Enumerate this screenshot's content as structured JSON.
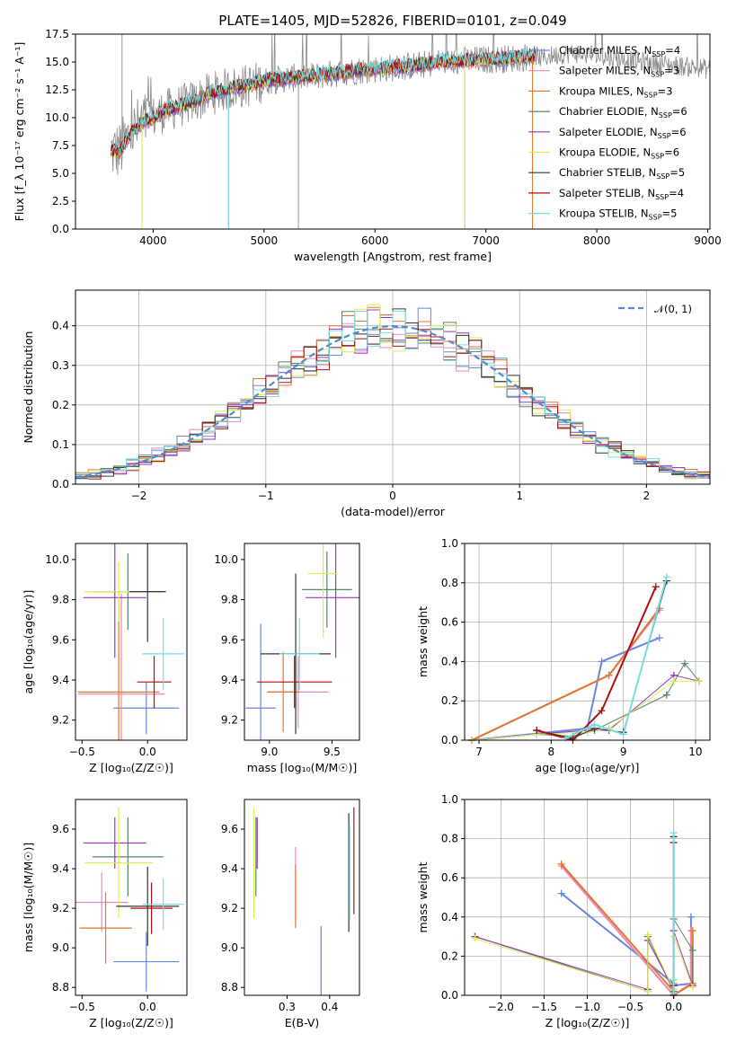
{
  "title": "PLATE=1405, MJD=52826, FIBERID=0101, z=0.049",
  "colors": {
    "chabrier_miles": "#6688dd",
    "salpeter_miles": "#ee88bb",
    "kroupa_miles": "#e07830",
    "chabrier_elodie": "#558866",
    "salpeter_elodie": "#9933bb",
    "kroupa_elodie": "#ddee55",
    "chabrier_stelib": "#333333",
    "salpeter_stelib": "#aa1111",
    "kroupa_stelib": "#77dddd",
    "data": "#888888",
    "normal": "#5588cc"
  },
  "models": [
    {
      "key": "chabrier_miles",
      "label": "Chabrier MILES, N",
      "nssp": "=4"
    },
    {
      "key": "salpeter_miles",
      "label": "Salpeter MILES, N",
      "nssp": "=3"
    },
    {
      "key": "kroupa_miles",
      "label": "Kroupa MILES, N",
      "nssp": "=3"
    },
    {
      "key": "chabrier_elodie",
      "label": "Chabrier ELODIE, N",
      "nssp": "=6"
    },
    {
      "key": "salpeter_elodie",
      "label": "Salpeter ELODIE, N",
      "nssp": "=6"
    },
    {
      "key": "kroupa_elodie",
      "label": "Kroupa ELODIE, N",
      "nssp": "=6"
    },
    {
      "key": "chabrier_stelib",
      "label": "Chabrier STELIB, N",
      "nssp": "=5"
    },
    {
      "key": "salpeter_stelib",
      "label": "Salpeter STELIB, N",
      "nssp": "=4"
    },
    {
      "key": "kroupa_stelib",
      "label": "Kroupa STELIB, N",
      "nssp": "=5"
    }
  ],
  "legend_sub": "SSP",
  "chart_data": [
    {
      "id": "spectrum",
      "type": "line",
      "xlabel": "wavelength [Angstrom, rest frame]",
      "ylabel": "Flux [f_λ 10⁻¹⁷ erg cm⁻² s⁻¹ A⁻¹]",
      "xlim": [
        3300,
        9020
      ],
      "ylim": [
        0,
        17.5
      ],
      "xticks": [
        4000,
        5000,
        6000,
        7000,
        8000,
        9000
      ],
      "xtick_labels": [
        "4000",
        "5000",
        "6000",
        "7000",
        "8000",
        "9000"
      ],
      "yticks": [
        0,
        2.5,
        5,
        7.5,
        10,
        12.5,
        15,
        17.5
      ],
      "ytick_labels": [
        "0.0",
        "2.5",
        "5.0",
        "7.5",
        "10.0",
        "12.5",
        "15.0",
        "17.5"
      ],
      "grid": false,
      "legend": "top-right",
      "continuum": [
        [
          3600,
          7.0
        ],
        [
          3700,
          7.0
        ],
        [
          3800,
          8.6
        ],
        [
          3900,
          9.5
        ],
        [
          4000,
          10.0
        ],
        [
          4100,
          10.6
        ],
        [
          4200,
          10.9
        ],
        [
          4300,
          11.2
        ],
        [
          4400,
          11.6
        ],
        [
          4500,
          12.1
        ],
        [
          4600,
          12.4
        ],
        [
          4700,
          12.6
        ],
        [
          4800,
          12.8
        ],
        [
          4900,
          13.0
        ],
        [
          5000,
          13.3
        ],
        [
          5200,
          13.5
        ],
        [
          5400,
          13.7
        ],
        [
          5600,
          13.9
        ],
        [
          5800,
          14.2
        ],
        [
          6000,
          14.4
        ],
        [
          6200,
          14.5
        ],
        [
          6400,
          14.7
        ],
        [
          6600,
          15.0
        ],
        [
          6800,
          15.1
        ],
        [
          7000,
          15.2
        ],
        [
          7200,
          15.3
        ],
        [
          7400,
          15.5
        ],
        [
          7450,
          15.6
        ]
      ],
      "model_end": 7450,
      "data_end": 9020,
      "data_tail": [
        [
          7500,
          15.3
        ],
        [
          7600,
          15.6
        ],
        [
          7700,
          15.7
        ],
        [
          7800,
          15.8
        ],
        [
          8000,
          15.5
        ],
        [
          8200,
          15.3
        ],
        [
          8400,
          15.0
        ],
        [
          8600,
          14.8
        ],
        [
          8800,
          14.6
        ],
        [
          9000,
          14.4
        ]
      ],
      "drops": [
        [
          4680,
          0.0
        ],
        [
          5310,
          0.0
        ],
        [
          6810,
          0.0
        ],
        [
          7420,
          0.0
        ],
        [
          3900,
          0.0
        ]
      ]
    },
    {
      "id": "residuals",
      "type": "histogram",
      "xlabel": "(data-model)/error",
      "ylabel": "Normed distribution",
      "xlim": [
        -2.5,
        2.5
      ],
      "ylim": [
        0,
        0.49
      ],
      "xticks": [
        -2,
        -1,
        0,
        1,
        2
      ],
      "xtick_labels": [
        "−2",
        "−1",
        "0",
        "1",
        "2"
      ],
      "yticks": [
        0,
        0.1,
        0.2,
        0.3,
        0.4
      ],
      "ytick_labels": [
        "0.0",
        "0.1",
        "0.2",
        "0.3",
        "0.4"
      ],
      "grid": true,
      "legend": "top-right",
      "normal_label": "𝒩(0, 1)",
      "bin_width": 0.1
    },
    {
      "id": "age_vs_Z",
      "type": "errorbar",
      "xlabel": "Z [log₁₀(Z/Z☉)]",
      "ylabel": "age  [log₁₀(age/yr)]",
      "xlim": [
        -0.55,
        0.3
      ],
      "ylim": [
        9.1,
        10.08
      ],
      "xticks": [
        -0.5,
        0.0
      ],
      "xtick_labels": [
        "−0.5",
        "0.0"
      ],
      "yticks": [
        9.2,
        9.4,
        9.6,
        9.8,
        10.0
      ],
      "ytick_labels": [
        "9.2",
        "9.4",
        "9.6",
        "9.8",
        "10.0"
      ],
      "points": [
        {
          "m": "chabrier_miles",
          "x": -0.01,
          "y": 9.26,
          "xe": 0.25,
          "ye": 0.13
        },
        {
          "m": "salpeter_miles",
          "x": -0.2,
          "y": 9.33,
          "xe": 0.33,
          "ye": 0.5
        },
        {
          "m": "kroupa_miles",
          "x": -0.22,
          "y": 9.34,
          "xe": 0.31,
          "ye": 0.5
        },
        {
          "m": "chabrier_elodie",
          "x": -0.15,
          "y": 9.84,
          "xe": 0.27,
          "ye": 0.19
        },
        {
          "m": "salpeter_elodie",
          "x": -0.25,
          "y": 9.81,
          "xe": 0.24,
          "ye": 0.3
        },
        {
          "m": "kroupa_elodie",
          "x": -0.22,
          "y": 9.84,
          "xe": 0.26,
          "ye": 0.15
        },
        {
          "m": "chabrier_stelib",
          "x": 0.0,
          "y": 9.84,
          "xe": 0.14,
          "ye": 0.25
        },
        {
          "m": "salpeter_stelib",
          "x": 0.05,
          "y": 9.39,
          "xe": 0.13,
          "ye": 0.13
        },
        {
          "m": "kroupa_stelib",
          "x": 0.12,
          "y": 9.53,
          "xe": 0.16,
          "ye": 0.18
        }
      ]
    },
    {
      "id": "age_vs_mass",
      "type": "errorbar",
      "xlabel": "mass [log₁₀(M/M☉)]",
      "ylabel": "",
      "xlim": [
        8.8,
        9.72
      ],
      "ylim": [
        9.1,
        10.08
      ],
      "xticks": [
        9.0,
        9.5
      ],
      "xtick_labels": [
        "9.0",
        "9.5"
      ],
      "yticks": [
        9.2,
        9.4,
        9.6,
        9.8,
        10.0
      ],
      "ytick_labels": [
        "9.2",
        "9.4",
        "9.6",
        "9.8",
        "10.0"
      ],
      "points": [
        {
          "m": "chabrier_miles",
          "x": 8.93,
          "y": 9.26,
          "xe": 0.12,
          "ye": 0.42
        },
        {
          "m": "salpeter_miles",
          "x": 9.23,
          "y": 9.34,
          "xe": 0.24,
          "ye": 0.18
        },
        {
          "m": "kroupa_miles",
          "x": 9.11,
          "y": 9.34,
          "xe": 0.13,
          "ye": 0.2
        },
        {
          "m": "chabrier_elodie",
          "x": 9.46,
          "y": 9.85,
          "xe": 0.2,
          "ye": 0.19
        },
        {
          "m": "salpeter_elodie",
          "x": 9.53,
          "y": 9.81,
          "xe": 0.24,
          "ye": 0.3
        },
        {
          "m": "kroupa_elodie",
          "x": 9.43,
          "y": 9.93,
          "xe": 0.12,
          "ye": 0.32
        },
        {
          "m": "chabrier_stelib",
          "x": 9.21,
          "y": 9.53,
          "xe": 0.28,
          "ye": 0.4
        },
        {
          "m": "salpeter_stelib",
          "x": 9.2,
          "y": 9.39,
          "xe": 0.3,
          "ye": 0.13
        },
        {
          "m": "kroupa_stelib",
          "x": 9.24,
          "y": 9.53,
          "xe": 0.16,
          "ye": 0.18
        }
      ]
    },
    {
      "id": "weight_vs_age",
      "type": "line",
      "xlabel": "age  [log₁₀(age/yr)]",
      "ylabel": "mass weight",
      "xlim": [
        6.8,
        10.2
      ],
      "ylim": [
        0,
        1.0
      ],
      "xticks": [
        7,
        8,
        9,
        10
      ],
      "xtick_labels": [
        "7",
        "8",
        "9",
        "10"
      ],
      "yticks": [
        0,
        0.2,
        0.4,
        0.6,
        0.8,
        1.0
      ],
      "ytick_labels": [
        "0.0",
        "0.2",
        "0.4",
        "0.6",
        "0.8",
        "1.0"
      ],
      "grid": true,
      "series": [
        {
          "m": "chabrier_miles",
          "w": 2,
          "x": [
            6.9,
            8.5,
            8.7,
            9.5
          ],
          "y": [
            0.0,
            0.06,
            0.4,
            0.52
          ]
        },
        {
          "m": "salpeter_miles",
          "w": 2,
          "x": [
            6.9,
            8.8,
            9.5
          ],
          "y": [
            0.0,
            0.33,
            0.66
          ]
        },
        {
          "m": "kroupa_miles",
          "w": 2,
          "x": [
            6.9,
            8.8,
            9.5
          ],
          "y": [
            0.0,
            0.33,
            0.67
          ]
        },
        {
          "m": "chabrier_elodie",
          "w": 1,
          "x": [
            6.9,
            7.8,
            8.3,
            8.6,
            9.6,
            9.85,
            10.05
          ],
          "y": [
            0.0,
            0.03,
            0.02,
            0.05,
            0.23,
            0.39,
            0.3
          ]
        },
        {
          "m": "salpeter_elodie",
          "w": 1,
          "x": [
            6.9,
            7.8,
            8.5,
            8.8,
            9.7,
            10.05
          ],
          "y": [
            0.0,
            0.03,
            0.05,
            0.05,
            0.33,
            0.3
          ]
        },
        {
          "m": "kroupa_elodie",
          "w": 1,
          "x": [
            6.9,
            7.8,
            8.5,
            8.8,
            9.7,
            10.05
          ],
          "y": [
            0.0,
            0.03,
            0.04,
            0.06,
            0.3,
            0.3
          ]
        },
        {
          "m": "chabrier_stelib",
          "w": 1,
          "x": [
            7.8,
            8.3,
            8.6,
            9.0,
            9.6
          ],
          "y": [
            0.05,
            0.01,
            0.06,
            0.04,
            0.81
          ]
        },
        {
          "m": "salpeter_stelib",
          "w": 2,
          "x": [
            7.8,
            8.3,
            8.7,
            9.45
          ],
          "y": [
            0.05,
            0.0,
            0.15,
            0.78
          ]
        },
        {
          "m": "kroupa_stelib",
          "w": 2,
          "x": [
            8.2,
            8.6,
            9.0,
            9.6
          ],
          "y": [
            0.01,
            0.08,
            0.03,
            0.83
          ]
        }
      ]
    },
    {
      "id": "mass_vs_Z",
      "type": "errorbar",
      "xlabel": "Z [log₁₀(Z/Z☉)]",
      "ylabel": "mass [log₁₀(M/M☉)]",
      "xlim": [
        -0.55,
        0.3
      ],
      "ylim": [
        8.76,
        9.75
      ],
      "xticks": [
        -0.5,
        0.0
      ],
      "xtick_labels": [
        "−0.5",
        "0.0"
      ],
      "yticks": [
        8.8,
        9.0,
        9.2,
        9.4,
        9.6
      ],
      "ytick_labels": [
        "8.8",
        "9.0",
        "9.2",
        "9.4",
        "9.6"
      ],
      "points": [
        {
          "m": "chabrier_miles",
          "x": -0.01,
          "y": 8.93,
          "xe": 0.25,
          "ye": 0.15
        },
        {
          "m": "salpeter_miles",
          "x": -0.35,
          "y": 9.23,
          "xe": 0.2,
          "ye": 0.15
        },
        {
          "m": "kroupa_miles",
          "x": -0.32,
          "y": 9.1,
          "xe": 0.2,
          "ye": 0.18
        },
        {
          "m": "chabrier_elodie",
          "x": -0.15,
          "y": 9.46,
          "xe": 0.27,
          "ye": 0.2
        },
        {
          "m": "salpeter_elodie",
          "x": -0.25,
          "y": 9.53,
          "xe": 0.24,
          "ye": 0.13
        },
        {
          "m": "kroupa_elodie",
          "x": -0.22,
          "y": 9.43,
          "xe": 0.26,
          "ye": 0.28
        },
        {
          "m": "chabrier_stelib",
          "x": 0.0,
          "y": 9.21,
          "xe": 0.24,
          "ye": 0.2
        },
        {
          "m": "salpeter_stelib",
          "x": 0.03,
          "y": 9.2,
          "xe": 0.16,
          "ye": 0.13
        },
        {
          "m": "kroupa_stelib",
          "x": 0.12,
          "y": 9.22,
          "xe": 0.16,
          "ye": 0.13
        }
      ]
    },
    {
      "id": "mass_vs_ebv",
      "type": "errorbar",
      "xlabel": "E(B-V)",
      "ylabel": "",
      "xlim": [
        0.2,
        0.47
      ],
      "ylim": [
        8.76,
        9.75
      ],
      "xticks": [
        0.3,
        0.4
      ],
      "xtick_labels": [
        "0.3",
        "0.4"
      ],
      "yticks": [
        8.8,
        9.0,
        9.2,
        9.4,
        9.6
      ],
      "ytick_labels": [
        "8.8",
        "9.0",
        "9.2",
        "9.4",
        "9.6"
      ],
      "points": [
        {
          "m": "chabrier_miles",
          "x": 0.38,
          "y": 8.93,
          "xe": 0.0,
          "ye": 0.18
        },
        {
          "m": "salpeter_miles",
          "x": 0.32,
          "y": 9.33,
          "xe": 0.0,
          "ye": 0.18
        },
        {
          "m": "kroupa_miles",
          "x": 0.32,
          "y": 9.26,
          "xe": 0.0,
          "ye": 0.16
        },
        {
          "m": "chabrier_elodie",
          "x": 0.227,
          "y": 9.46,
          "xe": 0.0,
          "ye": 0.2
        },
        {
          "m": "salpeter_elodie",
          "x": 0.23,
          "y": 9.53,
          "xe": 0.0,
          "ye": 0.13
        },
        {
          "m": "kroupa_elodie",
          "x": 0.222,
          "y": 9.43,
          "xe": 0.0,
          "ye": 0.28
        },
        {
          "m": "chabrier_stelib",
          "x": 0.445,
          "y": 9.38,
          "xe": 0.0,
          "ye": 0.3
        },
        {
          "m": "salpeter_stelib",
          "x": 0.457,
          "y": 9.44,
          "xe": 0.0,
          "ye": 0.27
        },
        {
          "m": "kroupa_stelib",
          "x": 0.447,
          "y": 9.38,
          "xe": 0.0,
          "ye": 0.24
        }
      ]
    },
    {
      "id": "weight_vs_Z",
      "type": "line",
      "xlabel": "Z [log₁₀(Z/Z☉)]",
      "ylabel": "mass weight",
      "xlim": [
        -2.42,
        0.42
      ],
      "ylim": [
        0,
        1.0
      ],
      "xticks": [
        -2.0,
        -1.5,
        -1.0,
        -0.5,
        0.0
      ],
      "xtick_labels": [
        "−2.0",
        "−1.5",
        "−1.0",
        "−0.5",
        "0.0"
      ],
      "yticks": [
        0,
        0.2,
        0.4,
        0.6,
        0.8,
        1.0
      ],
      "ytick_labels": [
        "0.0",
        "0.2",
        "0.4",
        "0.6",
        "0.8",
        "1.0"
      ],
      "grid": true,
      "series": [
        {
          "m": "chabrier_miles",
          "w": 2,
          "x": [
            -1.3,
            0.0,
            0.0,
            0.0,
            0.2,
            0.2
          ],
          "y": [
            0.52,
            0.06,
            0.0,
            0.05,
            0.06,
            0.4
          ]
        },
        {
          "m": "salpeter_miles",
          "w": 2,
          "x": [
            -1.3,
            0.0,
            0.0,
            0.2,
            0.2
          ],
          "y": [
            0.66,
            0.0,
            0.0,
            0.06,
            0.33
          ]
        },
        {
          "m": "kroupa_miles",
          "w": 2,
          "x": [
            -1.3,
            0.0,
            0.0,
            0.22,
            0.22
          ],
          "y": [
            0.67,
            0.02,
            0.0,
            0.06,
            0.33
          ]
        },
        {
          "m": "chabrier_elodie",
          "w": 1,
          "x": [
            -2.3,
            -0.3,
            -0.3,
            0.0,
            0.0,
            0.22,
            0.22
          ],
          "y": [
            0.3,
            0.02,
            0.3,
            0.02,
            0.39,
            0.23,
            0.05
          ]
        },
        {
          "m": "salpeter_elodie",
          "w": 1,
          "x": [
            -2.3,
            -0.3,
            -0.3,
            0.0,
            0.0,
            0.22
          ],
          "y": [
            0.3,
            0.03,
            0.28,
            0.03,
            0.33,
            0.05
          ]
        },
        {
          "m": "kroupa_elodie",
          "w": 1,
          "x": [
            -2.3,
            -0.3,
            -0.3,
            0.0,
            0.0,
            0.22
          ],
          "y": [
            0.29,
            0.02,
            0.31,
            0.03,
            0.3,
            0.04
          ]
        },
        {
          "m": "chabrier_stelib",
          "w": 1,
          "x": [
            0.0,
            0.0,
            0.0
          ],
          "y": [
            0.05,
            0.81,
            0.01
          ]
        },
        {
          "m": "salpeter_stelib",
          "w": 2,
          "x": [
            0.0,
            0.0,
            0.0
          ],
          "y": [
            0.05,
            0.78,
            0.0
          ]
        },
        {
          "m": "kroupa_stelib",
          "w": 2,
          "x": [
            0.0,
            0.0,
            0.0
          ],
          "y": [
            0.01,
            0.83,
            0.08
          ]
        }
      ]
    }
  ]
}
